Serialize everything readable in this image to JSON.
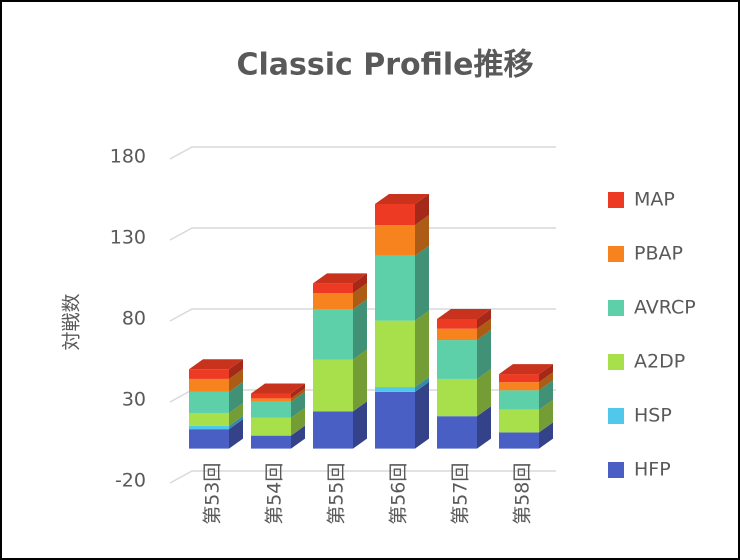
{
  "chart_data": {
    "type": "bar3d_stacked",
    "title": "Classic Profile推移",
    "y_label": "対戦数",
    "categories": [
      "第53回",
      "第54回",
      "第55回",
      "第56回",
      "第57回",
      "第58回"
    ],
    "series": [
      {
        "name": "HFP",
        "color": "#4a5fc4",
        "values": [
          12,
          8,
          23,
          35,
          20,
          10
        ]
      },
      {
        "name": "HSP",
        "color": "#4fc8ec",
        "values": [
          2,
          0,
          0,
          3,
          0,
          0
        ]
      },
      {
        "name": "A2DP",
        "color": "#a7e04b",
        "values": [
          8,
          11,
          32,
          41,
          23,
          14
        ]
      },
      {
        "name": "AVRCP",
        "color": "#5dcfa9",
        "values": [
          13,
          10,
          31,
          40,
          24,
          12
        ]
      },
      {
        "name": "PBAP",
        "color": "#f7831f",
        "values": [
          8,
          2,
          10,
          19,
          7,
          5
        ]
      },
      {
        "name": "MAP",
        "color": "#ec3b22",
        "values": [
          6,
          3,
          6,
          13,
          6,
          5
        ]
      }
    ],
    "ylim": [
      -20,
      180
    ],
    "yticks": [
      -20,
      30,
      80,
      130,
      180
    ],
    "grid": true,
    "legend": "right"
  }
}
